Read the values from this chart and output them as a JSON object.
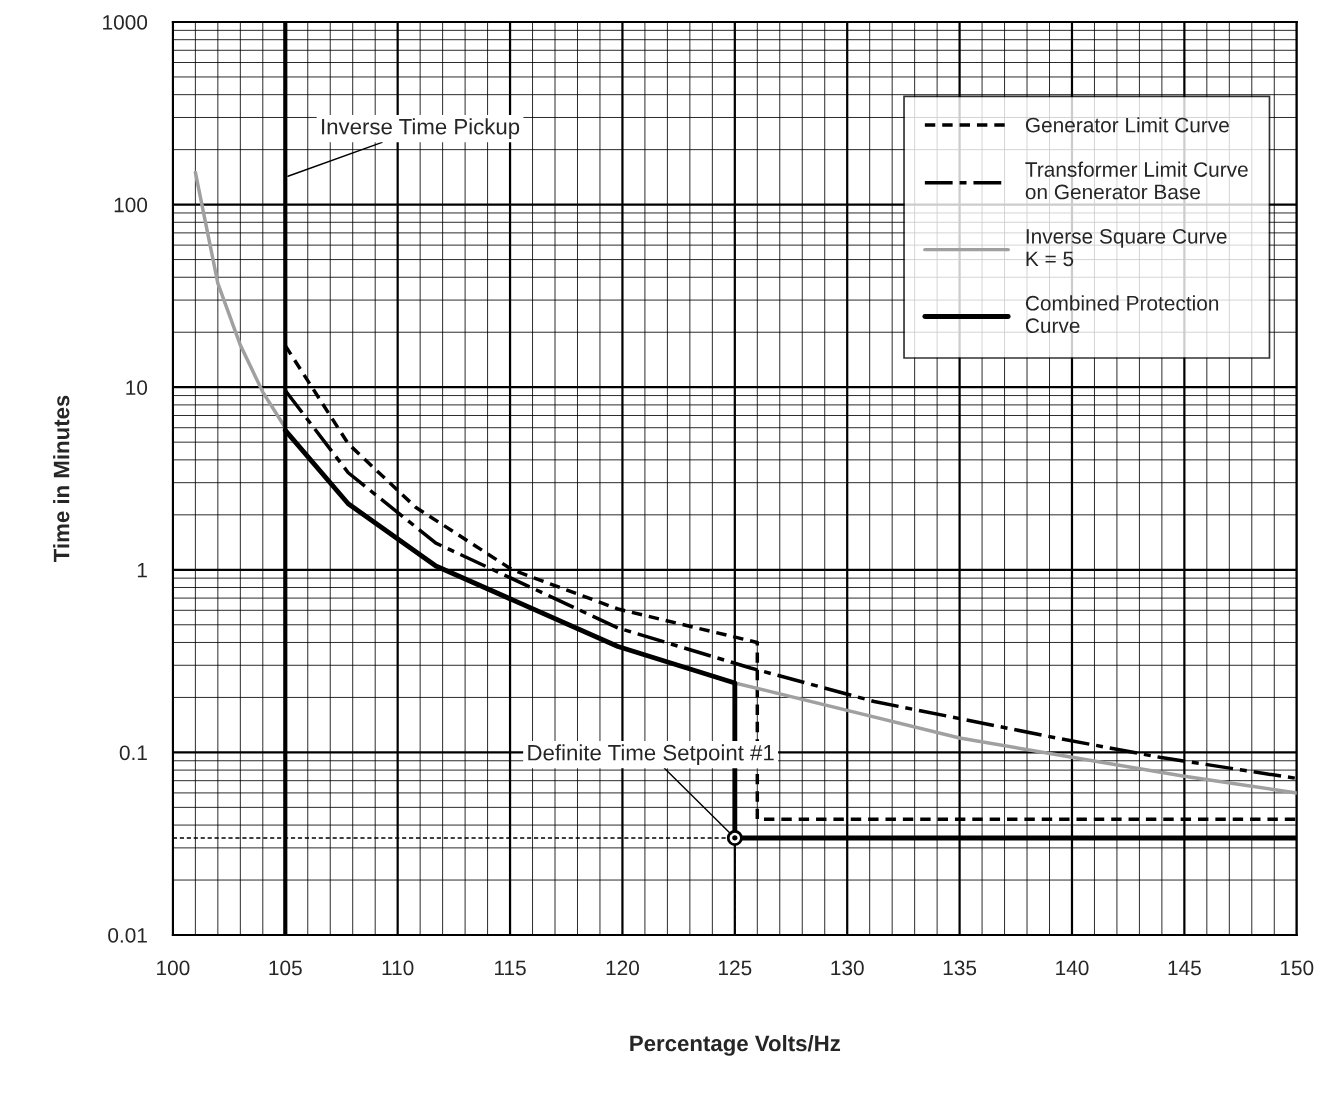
{
  "chart_data": {
    "type": "line",
    "xlabel": "Percentage Volts/Hz",
    "ylabel": "Time in Minutes",
    "log": "y",
    "xlim": [
      100,
      150
    ],
    "xticks": [
      100,
      105,
      110,
      115,
      120,
      125,
      130,
      135,
      140,
      145,
      150
    ],
    "ylim": [
      0.01,
      1000
    ],
    "yticks": [
      0.01,
      0.1,
      1,
      10,
      100,
      1000
    ],
    "grid": true,
    "legend": "top right",
    "series": [
      {
        "name": "Generator Limit Curve",
        "color": "#000000",
        "line_style": "dashed",
        "x": [
          105,
          107.8,
          110.8,
          115.1,
          119.8,
          126,
          126,
          150
        ],
        "values": [
          16.9,
          4.9,
          2.2,
          1,
          0.61,
          0.4,
          0.043,
          0.043
        ]
      },
      {
        "name": "Transformer Limit Curve\non Generator Base",
        "color": "#000000",
        "line_style": "dashdot",
        "x": [
          105,
          107.8,
          111.7,
          119.8,
          125.7,
          131.2,
          139.3,
          143.9,
          150
        ],
        "values": [
          9.6,
          3.4,
          1.4,
          0.48,
          0.29,
          0.19,
          0.12,
          0.094,
          0.072
        ]
      },
      {
        "name": "Inverse Square Curve\nK = 5",
        "color": "#a0a0a0",
        "line_style": "solid",
        "x": [
          101,
          102,
          103,
          104,
          105,
          115,
          125,
          130,
          135,
          140,
          145,
          150
        ],
        "values": [
          150,
          37,
          17,
          9.4,
          6,
          null,
          0.24,
          0.17,
          0.12,
          0.094,
          0.074,
          0.06
        ]
      },
      {
        "name": "Combined Protection\nCurve",
        "color": "#000000",
        "line_style": "solid",
        "x": [
          105,
          107.8,
          111.7,
          119.8,
          125,
          125,
          150
        ],
        "values": [
          5.8,
          2.3,
          1.05,
          0.38,
          0.24,
          0.034,
          0.034
        ]
      },
      {
        "color": "#000000",
        "line_style": "dashed",
        "marker": "none",
        "x": [
          100,
          125,
          125
        ],
        "values": [
          0.034,
          0.034,
          0.01
        ]
      },
      {
        "type": "scatter",
        "color": "#000000",
        "marker": "circle",
        "x": [
          125
        ],
        "values": [
          0.034
        ]
      }
    ],
    "ref_lines": [
      {
        "axis": "x",
        "value": 105,
        "color": "#000000",
        "label": "Inverse Time Pickup"
      }
    ],
    "annotations": [
      {
        "text": "Definite Time Setpoint #1",
        "x": 125,
        "y": 0.034
      }
    ]
  }
}
